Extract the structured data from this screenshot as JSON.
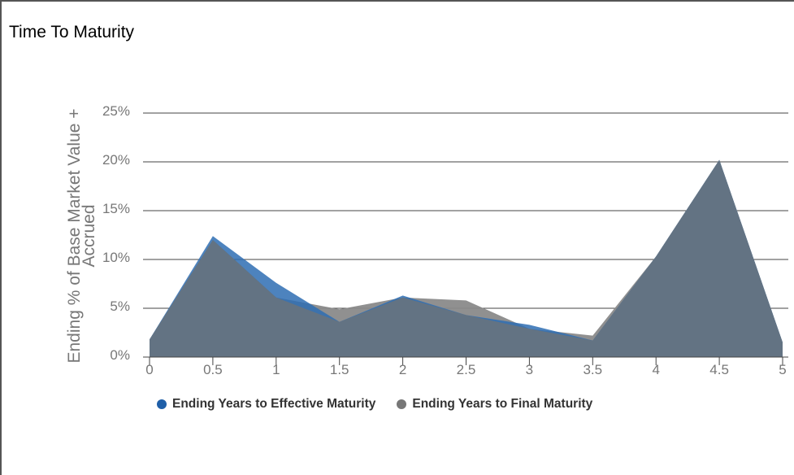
{
  "title": "Time To Maturity",
  "chart_data": {
    "type": "area",
    "title": "Time To Maturity",
    "xlabel": "",
    "ylabel": "Ending % of Base Market Value + Accrued",
    "ylabel_lines": [
      "Ending % of Base Market Value +",
      "Accrued"
    ],
    "x": [
      0,
      0.5,
      1,
      1.5,
      2,
      2.5,
      3,
      3.5,
      4,
      4.5,
      5
    ],
    "x_tick_labels": [
      "0",
      "0.5",
      "1",
      "1.5",
      "2",
      "2.5",
      "3",
      "3.5",
      "4",
      "4.5",
      "5"
    ],
    "y_ticks": [
      0,
      5,
      10,
      15,
      20,
      25
    ],
    "y_tick_labels": [
      "0%",
      "5%",
      "10%",
      "15%",
      "20%",
      "25%"
    ],
    "xlim": [
      0,
      5
    ],
    "ylim": [
      0,
      25
    ],
    "grid": true,
    "legend_position": "bottom",
    "series": [
      {
        "name": "Ending Years to Effective Maturity",
        "color": "#2e6db3",
        "values": [
          1.8,
          12.4,
          7.6,
          3.6,
          6.3,
          4.3,
          3.3,
          1.7,
          10.3,
          20.2,
          1.5
        ]
      },
      {
        "name": "Ending Years to Final Maturity",
        "color": "#8a8a8a",
        "values": [
          1.8,
          12.0,
          6.1,
          4.9,
          6.1,
          5.8,
          2.9,
          2.2,
          10.3,
          20.2,
          1.5
        ]
      }
    ]
  }
}
